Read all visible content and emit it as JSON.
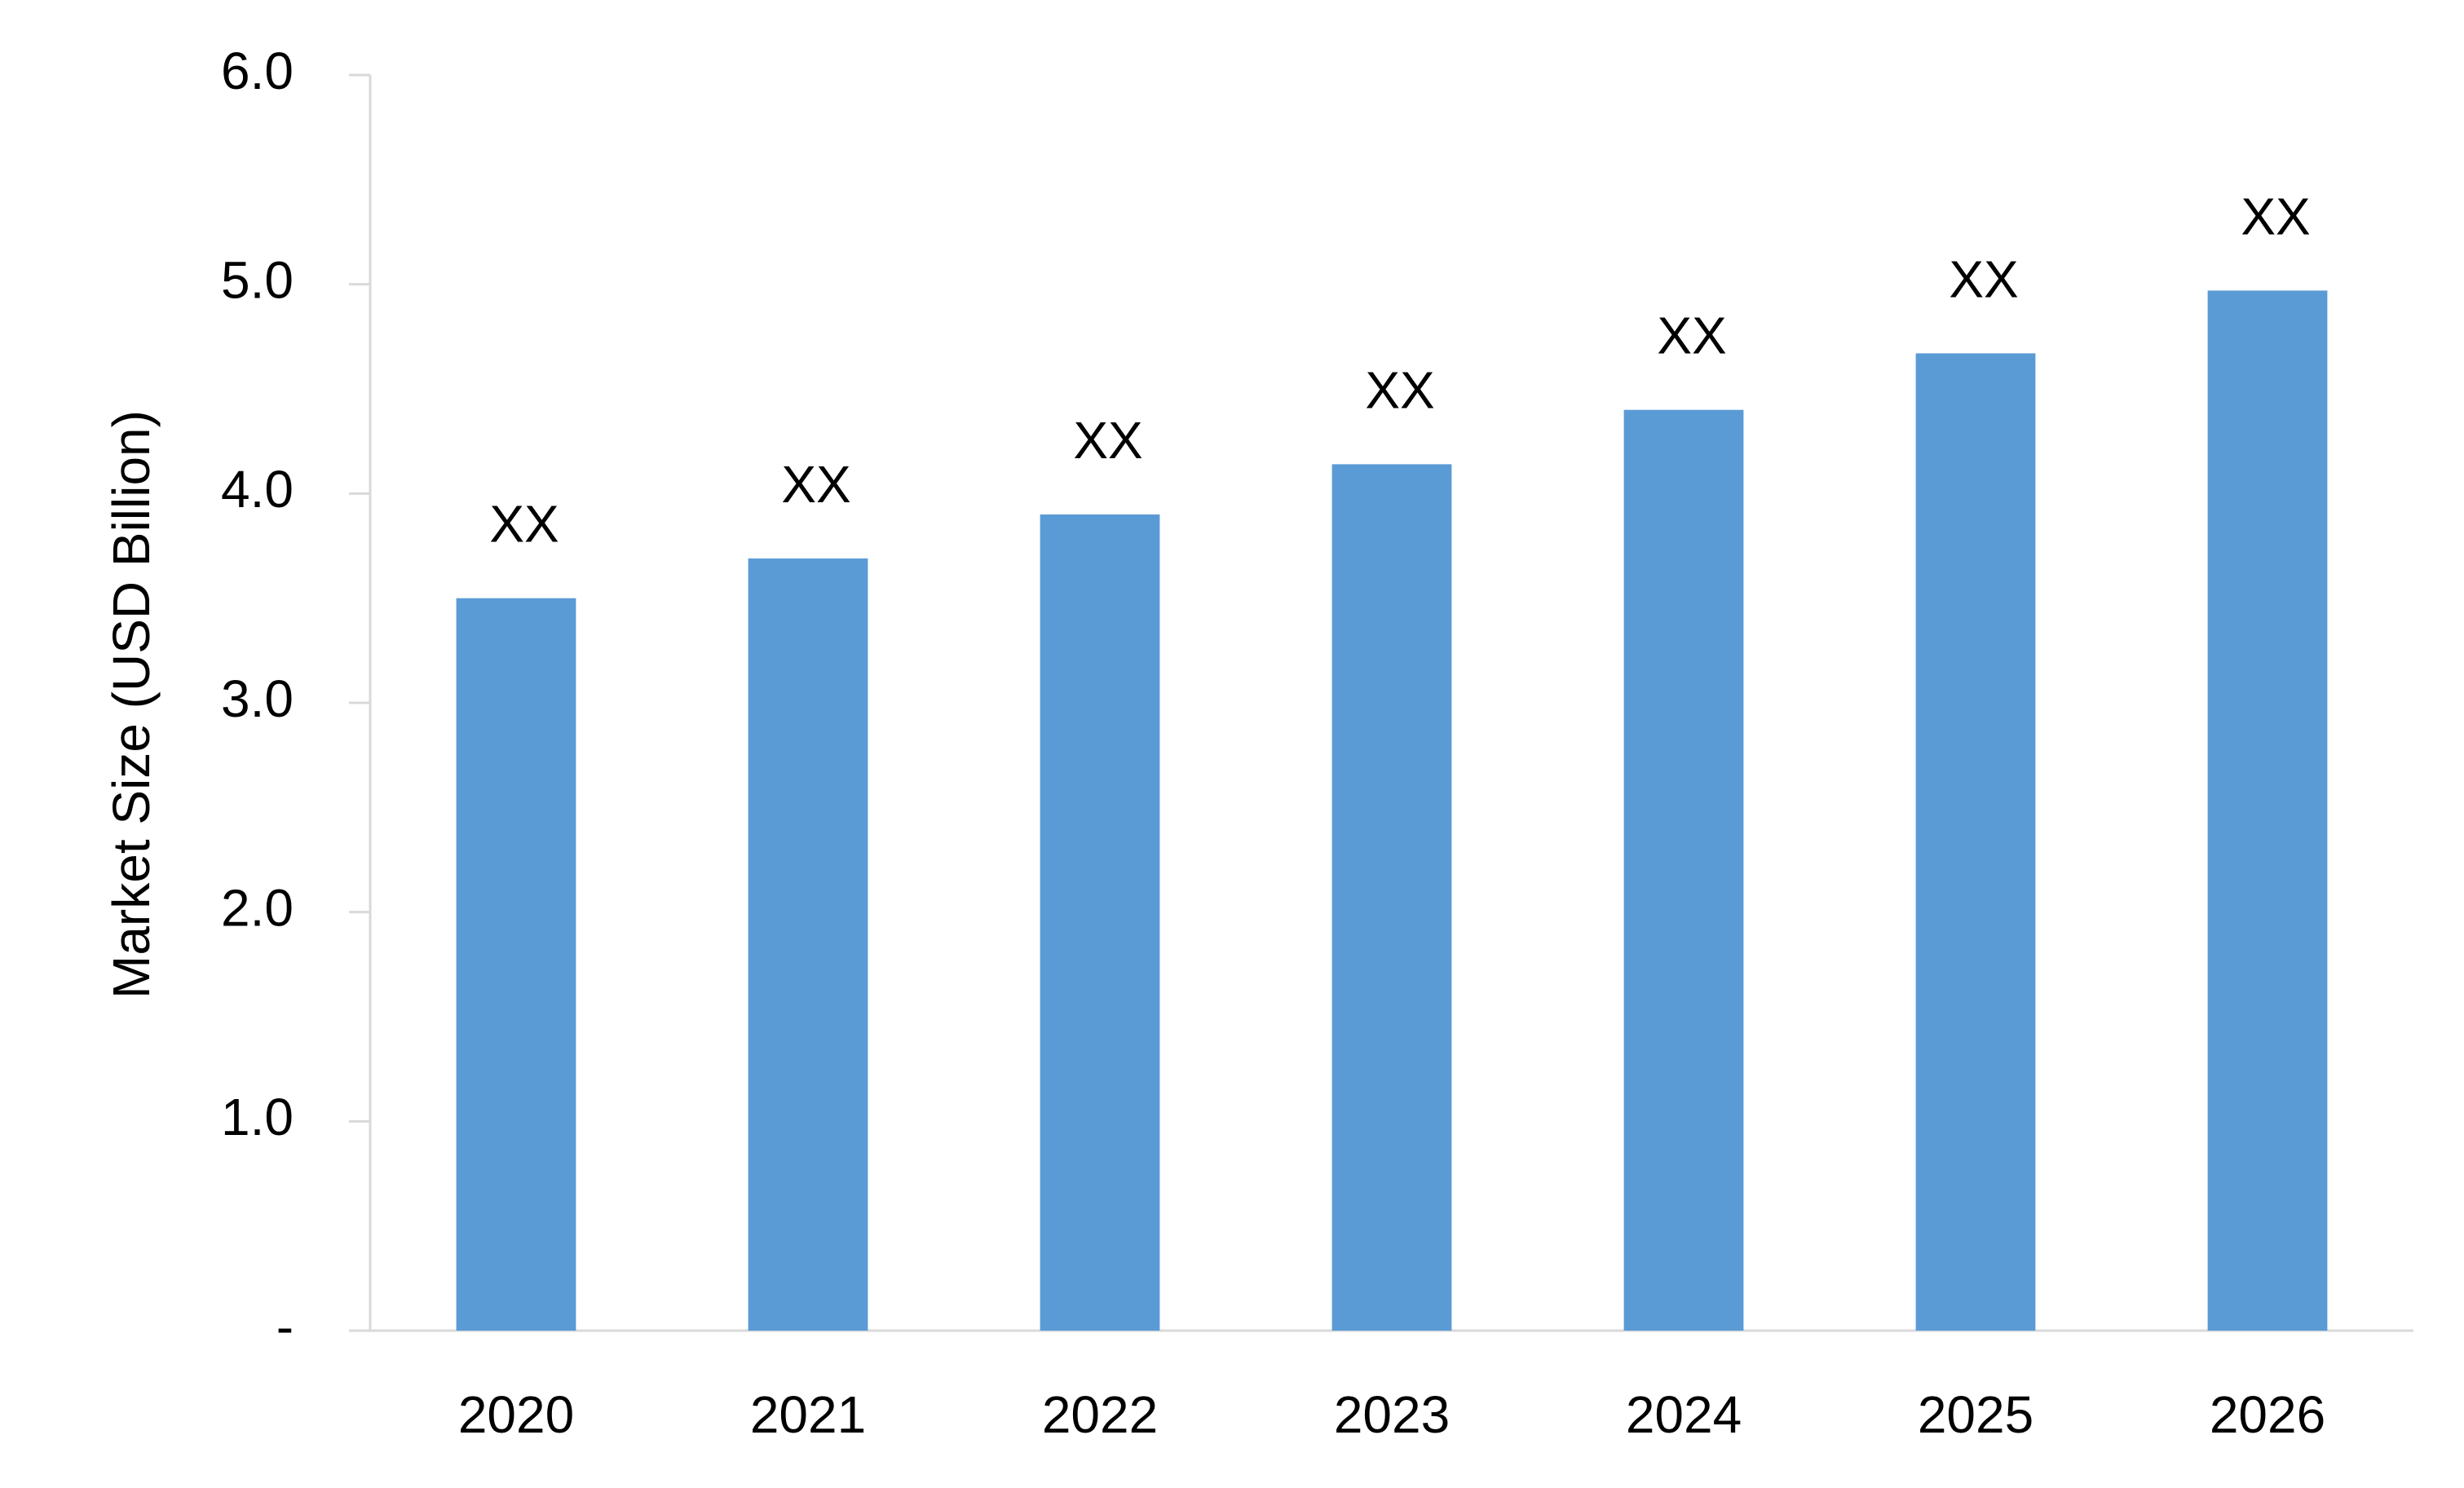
{
  "chart_data": {
    "type": "bar",
    "y_axis_label": "Market Size (USD Billion)",
    "categories": [
      "2020",
      "2021",
      "2022",
      "2023",
      "2024",
      "2025",
      "2026"
    ],
    "values": [
      3.5,
      3.69,
      3.9,
      4.14,
      4.4,
      4.67,
      4.97
    ],
    "value_labels": [
      "XX",
      "XX",
      "XX",
      "XX",
      "XX",
      "XX",
      "XX"
    ],
    "color": "#5b9bd5",
    "ylim": [
      0,
      6
    ],
    "yticks": [
      {
        "value": 0,
        "label": "-"
      },
      {
        "value": 1,
        "label": "1.0"
      },
      {
        "value": 2,
        "label": "2.0"
      },
      {
        "value": 3,
        "label": "3.0"
      },
      {
        "value": 4,
        "label": "4.0"
      },
      {
        "value": 5,
        "label": "5.0"
      },
      {
        "value": 6,
        "label": "6.0"
      }
    ],
    "grid": false
  }
}
